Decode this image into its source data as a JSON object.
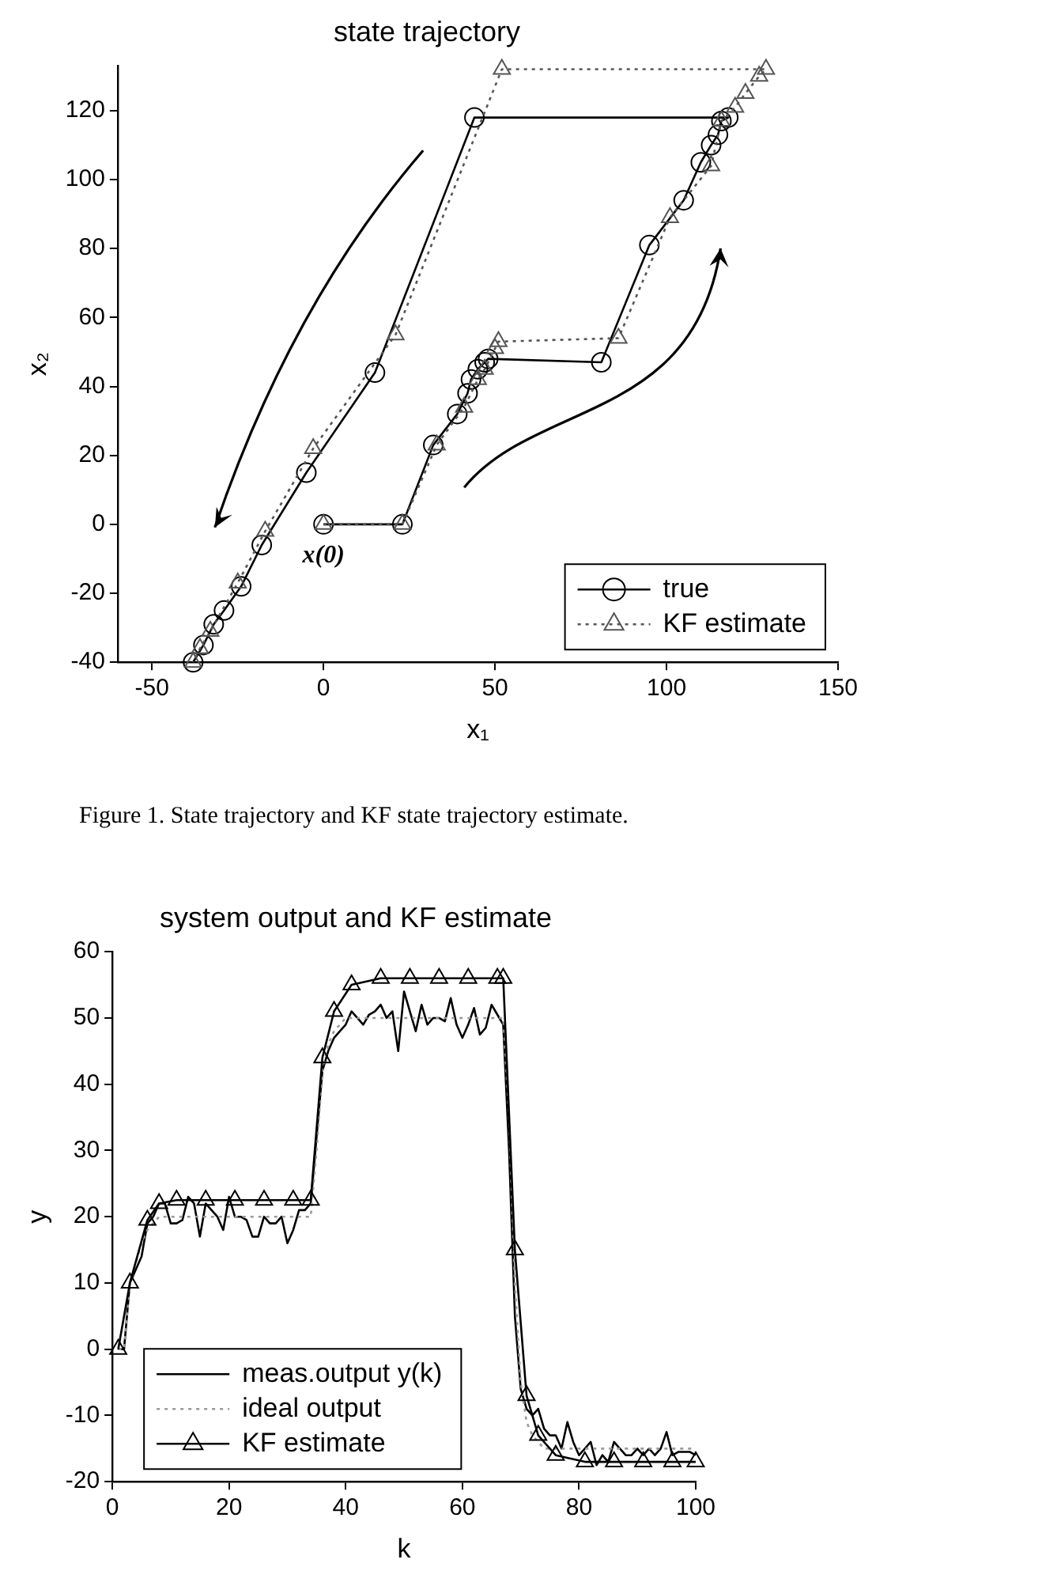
{
  "chart_data": [
    {
      "type": "line",
      "title": "state trajectory",
      "xlabel": "x₁",
      "ylabel": "x₂",
      "xlim": [
        -60,
        150
      ],
      "xticks": [
        -50,
        0,
        50,
        100,
        150
      ],
      "ylim": [
        -40,
        133
      ],
      "yticks": [
        -40,
        -20,
        0,
        20,
        40,
        60,
        80,
        100,
        120
      ],
      "grid": false,
      "legend": "bottom right",
      "series": [
        {
          "name": "true",
          "color": "#000000",
          "marker": "circle",
          "line_style": "solid",
          "x": [
            0,
            23,
            32,
            39,
            42,
            43,
            45,
            47,
            48,
            81,
            95,
            105,
            110,
            113,
            115,
            116,
            118,
            44,
            15,
            -5,
            -18,
            -24,
            -29,
            -32,
            -35,
            -38
          ],
          "values": [
            0,
            0,
            23,
            32,
            38,
            42,
            45,
            47,
            48,
            47,
            81,
            94,
            105,
            110,
            113,
            117,
            118,
            118,
            44,
            15,
            -6,
            -18,
            -25,
            -29,
            -35,
            -40
          ]
        },
        {
          "name": "KF estimate",
          "color": "#555555",
          "marker": "triangle",
          "line_style": "dotted",
          "x": [
            0,
            23,
            33,
            41,
            45,
            47,
            50,
            51,
            86,
            101,
            113,
            116,
            120,
            123,
            127,
            129,
            52,
            21,
            -3,
            -17,
            -25,
            -33,
            -36,
            -38
          ],
          "values": [
            0,
            0,
            23,
            34,
            42,
            45,
            51,
            53,
            54,
            89,
            104,
            117,
            121,
            125,
            130,
            132,
            132,
            55,
            22,
            -2,
            -17,
            -31,
            -36,
            -40
          ]
        }
      ],
      "annotations": [
        {
          "text": "x(0)",
          "x": 0,
          "y": 0
        },
        "Figure 1. State trajectory and KF state trajectory estimate."
      ]
    },
    {
      "type": "line",
      "title": "system output and KF estimate",
      "xlabel": "k",
      "ylabel": "y",
      "xlim": [
        0,
        100
      ],
      "xticks": [
        0,
        20,
        40,
        60,
        80,
        100
      ],
      "ylim": [
        -20,
        60
      ],
      "yticks": [
        -20,
        -10,
        0,
        10,
        20,
        30,
        40,
        50,
        60
      ],
      "grid": false,
      "legend": "bottom left",
      "x": [
        1,
        2,
        3,
        4,
        5,
        6,
        7,
        8,
        9,
        10,
        11,
        12,
        13,
        14,
        15,
        16,
        17,
        18,
        19,
        20,
        21,
        22,
        23,
        24,
        25,
        26,
        27,
        28,
        29,
        30,
        31,
        32,
        33,
        34,
        35,
        36,
        37,
        38,
        39,
        40,
        41,
        42,
        43,
        44,
        45,
        46,
        47,
        48,
        49,
        50,
        51,
        52,
        53,
        54,
        55,
        56,
        57,
        58,
        59,
        60,
        61,
        62,
        63,
        64,
        65,
        66,
        67,
        68,
        69,
        70,
        71,
        72,
        73,
        74,
        75,
        76,
        77,
        78,
        79,
        80,
        81,
        82,
        83,
        84,
        85,
        86,
        87,
        88,
        89,
        90,
        91,
        92,
        93,
        94,
        95,
        96,
        97,
        98,
        99,
        100
      ],
      "series": [
        {
          "name": "meas.output y(k)",
          "color": "#000000",
          "marker": "none",
          "line_style": "solid",
          "values": [
            0,
            0,
            10,
            12,
            14,
            19,
            20,
            22,
            22,
            19,
            19,
            19.5,
            23,
            22,
            17,
            22,
            21,
            20,
            18,
            23,
            20,
            20,
            19.5,
            17,
            17,
            20,
            19,
            19,
            20,
            16,
            18,
            21,
            21,
            22,
            32,
            42,
            45,
            47,
            48,
            49,
            51,
            50,
            49,
            50.5,
            51,
            52,
            50,
            51,
            45,
            54,
            51,
            48,
            52,
            49,
            50,
            50,
            49.5,
            53,
            49,
            47,
            49,
            51.5,
            47.5,
            48.5,
            52,
            50.5,
            49,
            30,
            5,
            -6,
            -9,
            -10,
            -9,
            -12,
            -13,
            -13,
            -15,
            -11,
            -14,
            -16,
            -15,
            -14,
            -17.5,
            -16,
            -17,
            -14,
            -15,
            -16,
            -16,
            -15,
            -16,
            -15,
            -16,
            -15,
            -12.5,
            -16,
            -15.5,
            -15.5,
            -15.5,
            -16
          ]
        },
        {
          "name": "ideal output",
          "color": "#999999",
          "marker": "none",
          "line_style": "dotted",
          "x": [
            1,
            2,
            3,
            4,
            5,
            6,
            7,
            8,
            10,
            34,
            35,
            36,
            37,
            38,
            40,
            67,
            68,
            69,
            70,
            71,
            72,
            74,
            100
          ],
          "values": [
            0,
            0,
            10,
            13,
            16,
            18,
            19,
            20,
            20,
            20,
            30,
            42,
            46,
            48,
            50,
            50,
            35,
            10,
            -5,
            -11,
            -13,
            -15,
            -15
          ]
        },
        {
          "name": "KF estimate",
          "color": "#000000",
          "marker": "triangle",
          "line_style": "solid",
          "x": [
            1,
            3,
            6,
            8,
            11,
            16,
            21,
            26,
            31,
            34,
            36,
            38,
            41,
            46,
            51,
            56,
            61,
            66,
            67,
            69,
            71,
            73,
            76,
            81,
            86,
            91,
            96,
            100
          ],
          "values": [
            0,
            10,
            19.5,
            22,
            22.5,
            22.5,
            22.5,
            22.5,
            22.5,
            22.5,
            44,
            51,
            55,
            56,
            56,
            56,
            56,
            56,
            56,
            15,
            -7,
            -13,
            -16,
            -17,
            -17,
            -17,
            -17,
            -17
          ]
        }
      ]
    }
  ]
}
